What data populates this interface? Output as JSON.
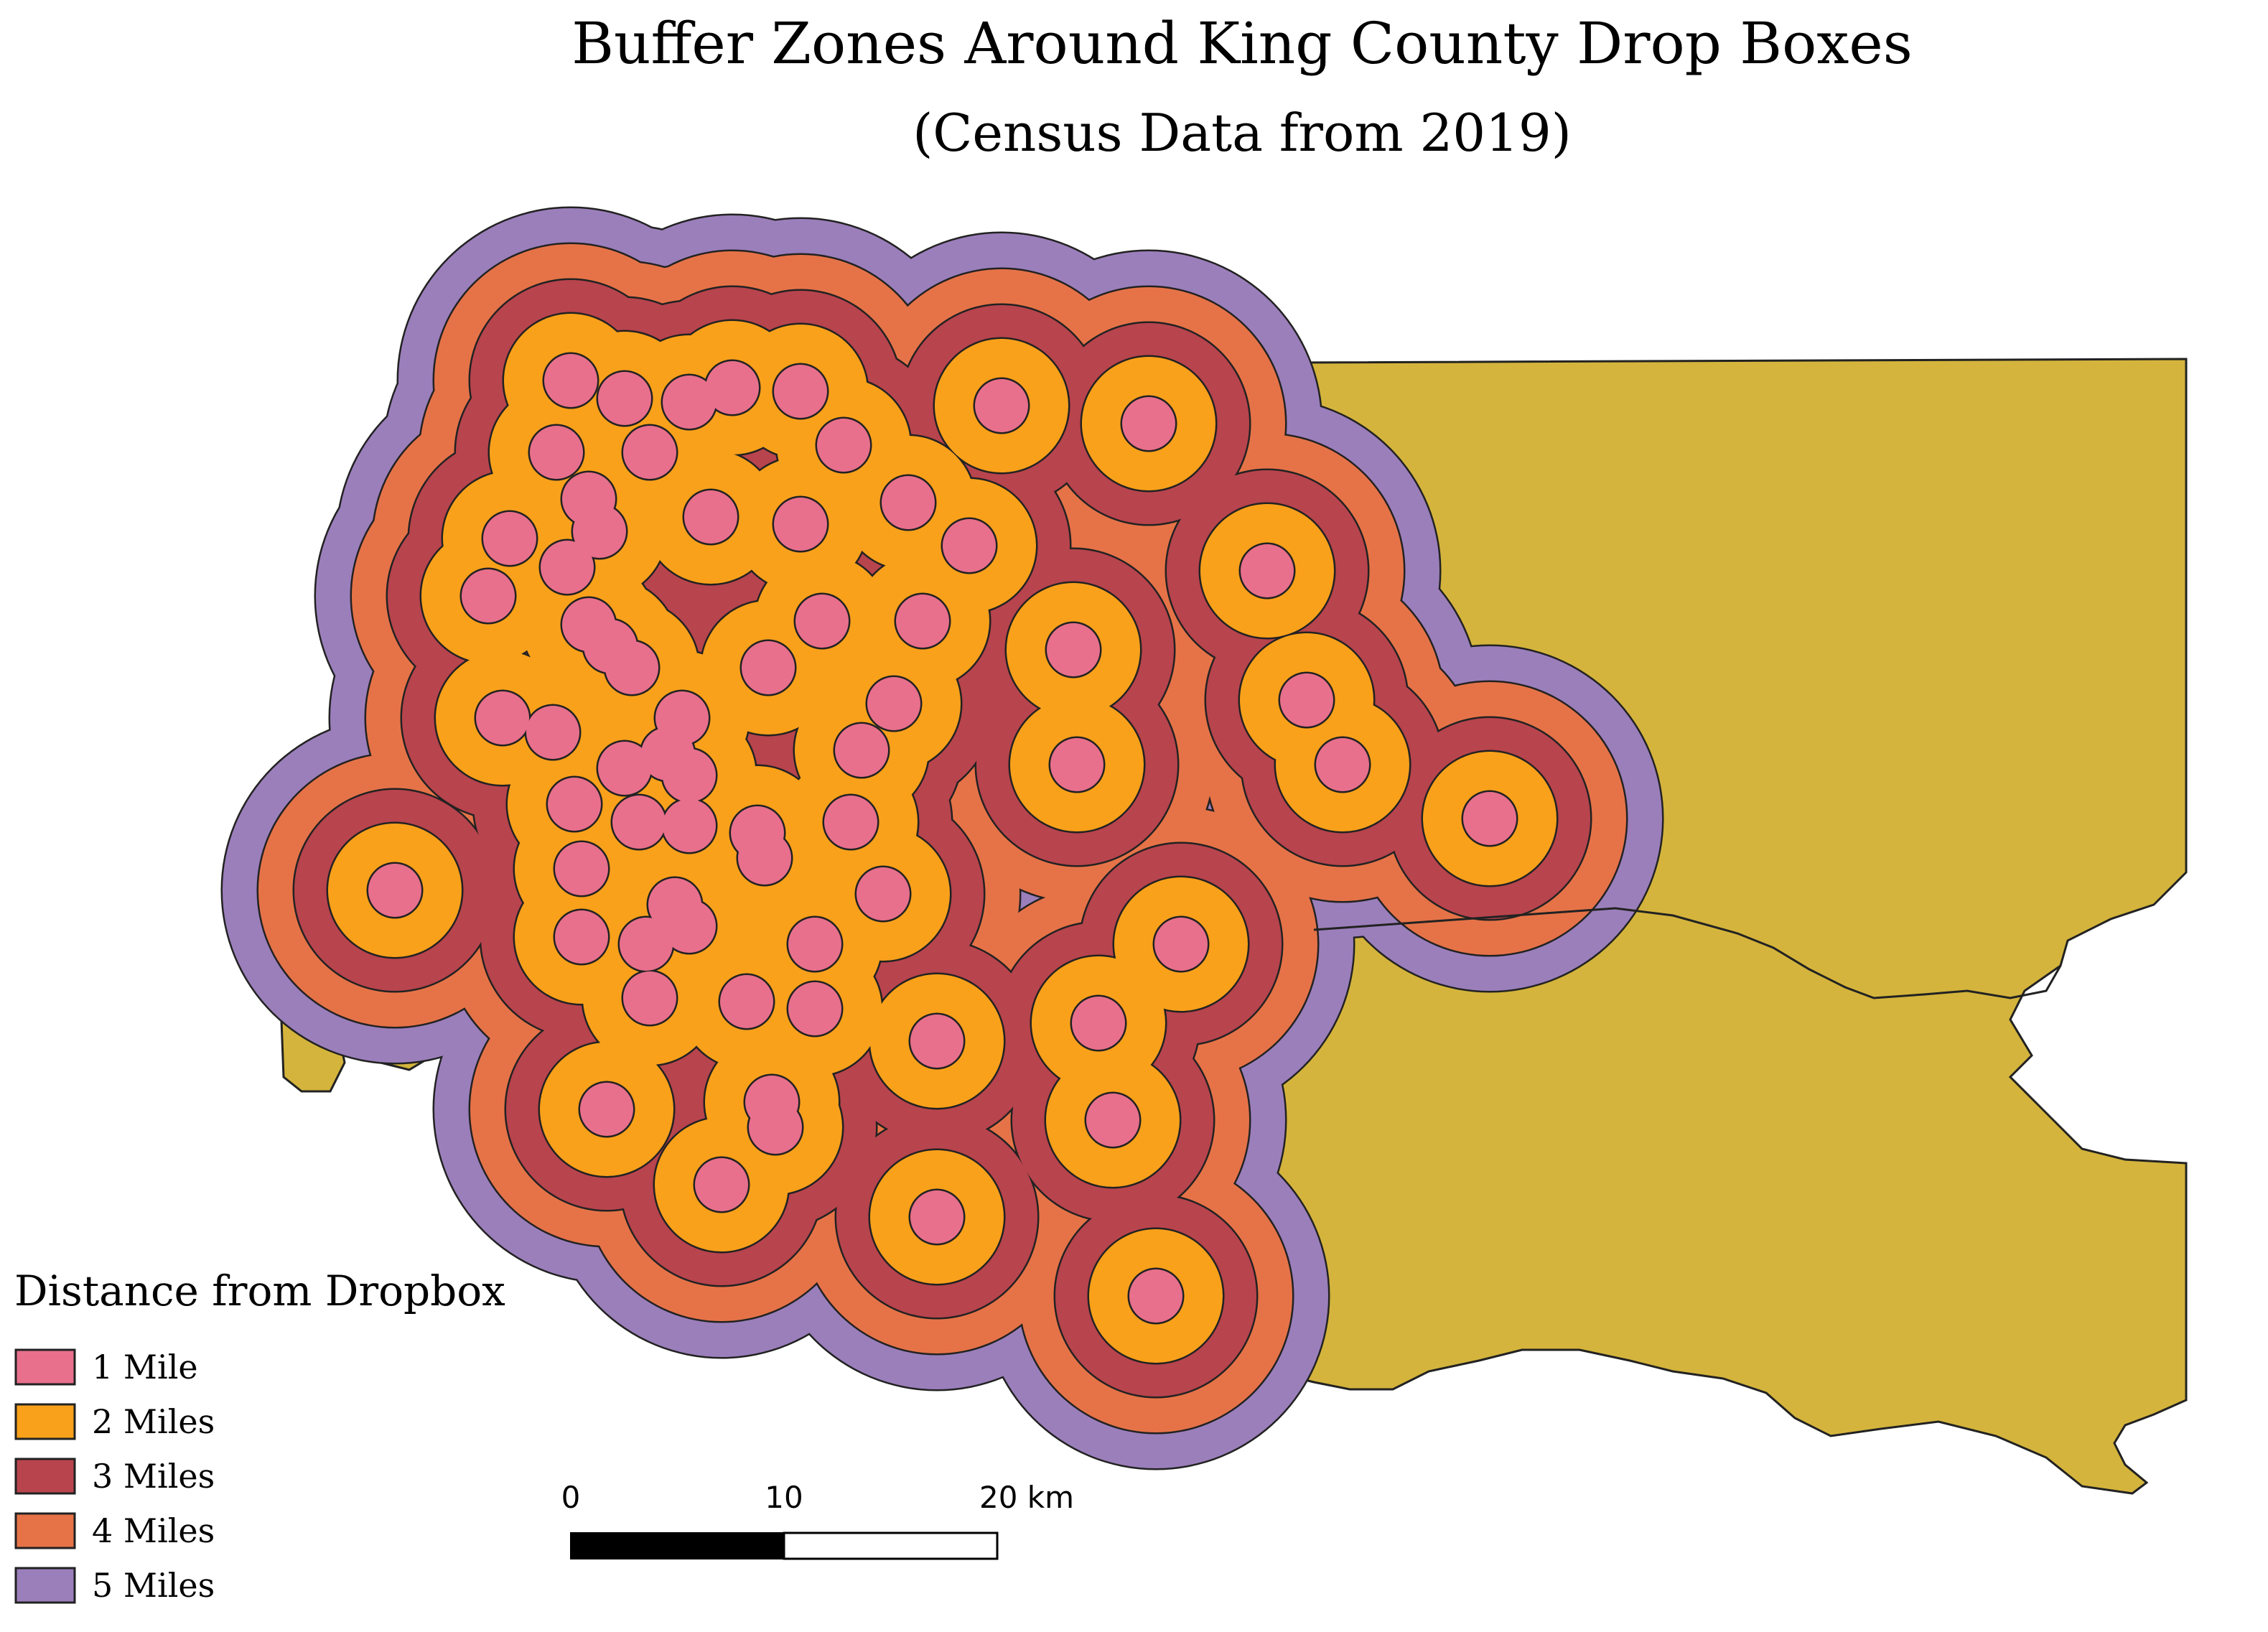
{
  "title": "Buffer Zones Around King County Drop Boxes",
  "subtitle": "(Census Data from 2019)",
  "colors": {
    "background": "#ffffff",
    "county_land": "#d4b43c",
    "buffer_1_mile": "#e8708c",
    "buffer_2_miles": "#f9a11b",
    "buffer_3_miles": "#b8444d",
    "buffer_4_miles": "#e67348",
    "buffer_5_miles": "#9b7fbb",
    "outline": "#222222"
  },
  "legend": {
    "title": "Distance from Dropbox",
    "items": [
      {
        "label": "1 Mile",
        "color": "#e8708c"
      },
      {
        "label": "2 Miles",
        "color": "#f9a11b"
      },
      {
        "label": "3 Miles",
        "color": "#b8444d"
      },
      {
        "label": "4 Miles",
        "color": "#e67348"
      },
      {
        "label": "5 Miles",
        "color": "#9b7fbb"
      }
    ]
  },
  "scale_bar": {
    "labels": [
      "0",
      "10",
      "20 km"
    ]
  }
}
